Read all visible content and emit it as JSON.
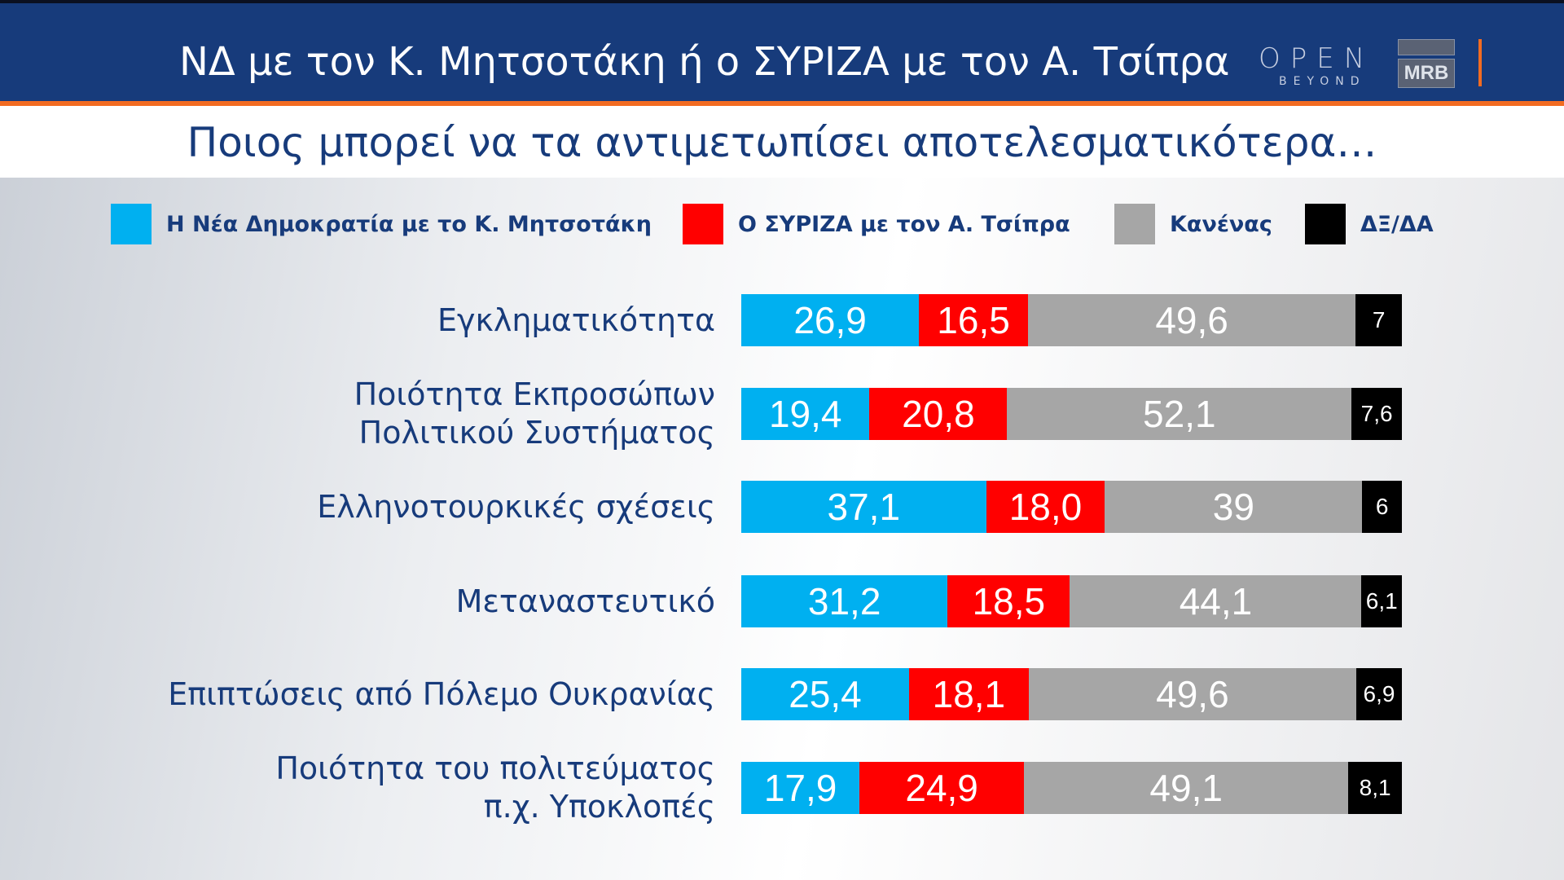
{
  "header": {
    "title": "ΝΔ με τον Κ. Μητσοτάκη ή ο ΣΥΡΙΖΑ με τον Α. Τσίπρα",
    "logo_open": "OPEN",
    "logo_beyond": "BEYOND",
    "logo_mrb": "MRB"
  },
  "subtitle": "Ποιος μπορεί να τα αντιμετωπίσει αποτελεσματικότερα…",
  "colors": {
    "nd": "#00b0f0",
    "syriza": "#ff0000",
    "none": "#a6a6a6",
    "dk": "#000000",
    "header": "#173b7b",
    "accent": "#f26b21"
  },
  "chart_data": {
    "type": "bar",
    "orientation": "horizontal-stacked-100",
    "legend_position": "top",
    "categories": [
      "Εγκληματικότητα",
      "Ποιότητα Εκπροσώπων Πολιτικού Συστήματος",
      "Ελληνοτουρκικές σχέσεις",
      "Μεταναστευτικό",
      "Επιπτώσεις από Πόλεμο Ουκρανίας",
      "Ποιότητα του πολιτεύματος π.χ. Υποκλοπές"
    ],
    "category_lines": [
      [
        "Εγκληματικότητα"
      ],
      [
        "Ποιότητα Εκπροσώπων",
        "Πολιτικού Συστήματος"
      ],
      [
        "Ελληνοτουρκικές σχέσεις"
      ],
      [
        "Μεταναστευτικό"
      ],
      [
        "Επιπτώσεις από Πόλεμο Ουκρανίας"
      ],
      [
        "Ποιότητα του πολιτεύματος",
        "π.χ. Υποκλοπές"
      ]
    ],
    "series": [
      {
        "name": "Η Νέα Δημοκρατία με το Κ. Μητσοτάκη",
        "color": "#00b0f0",
        "values": [
          26.9,
          19.4,
          37.1,
          31.2,
          25.4,
          17.9
        ],
        "labels": [
          "26,9",
          "19,4",
          "37,1",
          "31,2",
          "25,4",
          "17,9"
        ]
      },
      {
        "name": "Ο ΣΥΡΙΖΑ με τον Α. Τσίπρα",
        "color": "#ff0000",
        "values": [
          16.5,
          20.8,
          18.0,
          18.5,
          18.1,
          24.9
        ],
        "labels": [
          "16,5",
          "20,8",
          "18,0",
          "18,5",
          "18,1",
          "24,9"
        ]
      },
      {
        "name": "Κανένας",
        "color": "#a6a6a6",
        "values": [
          49.6,
          52.1,
          39,
          44.1,
          49.6,
          49.1
        ],
        "labels": [
          "49,6",
          "52,1",
          "39",
          "44,1",
          "49,6",
          "49,1"
        ]
      },
      {
        "name": "ΔΞ/ΔΑ",
        "color": "#000000",
        "values": [
          7,
          7.6,
          6,
          6.1,
          6.9,
          8.1
        ],
        "labels": [
          "7",
          "7,6",
          "6",
          "6,1",
          "6,9",
          "8,1"
        ]
      }
    ]
  }
}
